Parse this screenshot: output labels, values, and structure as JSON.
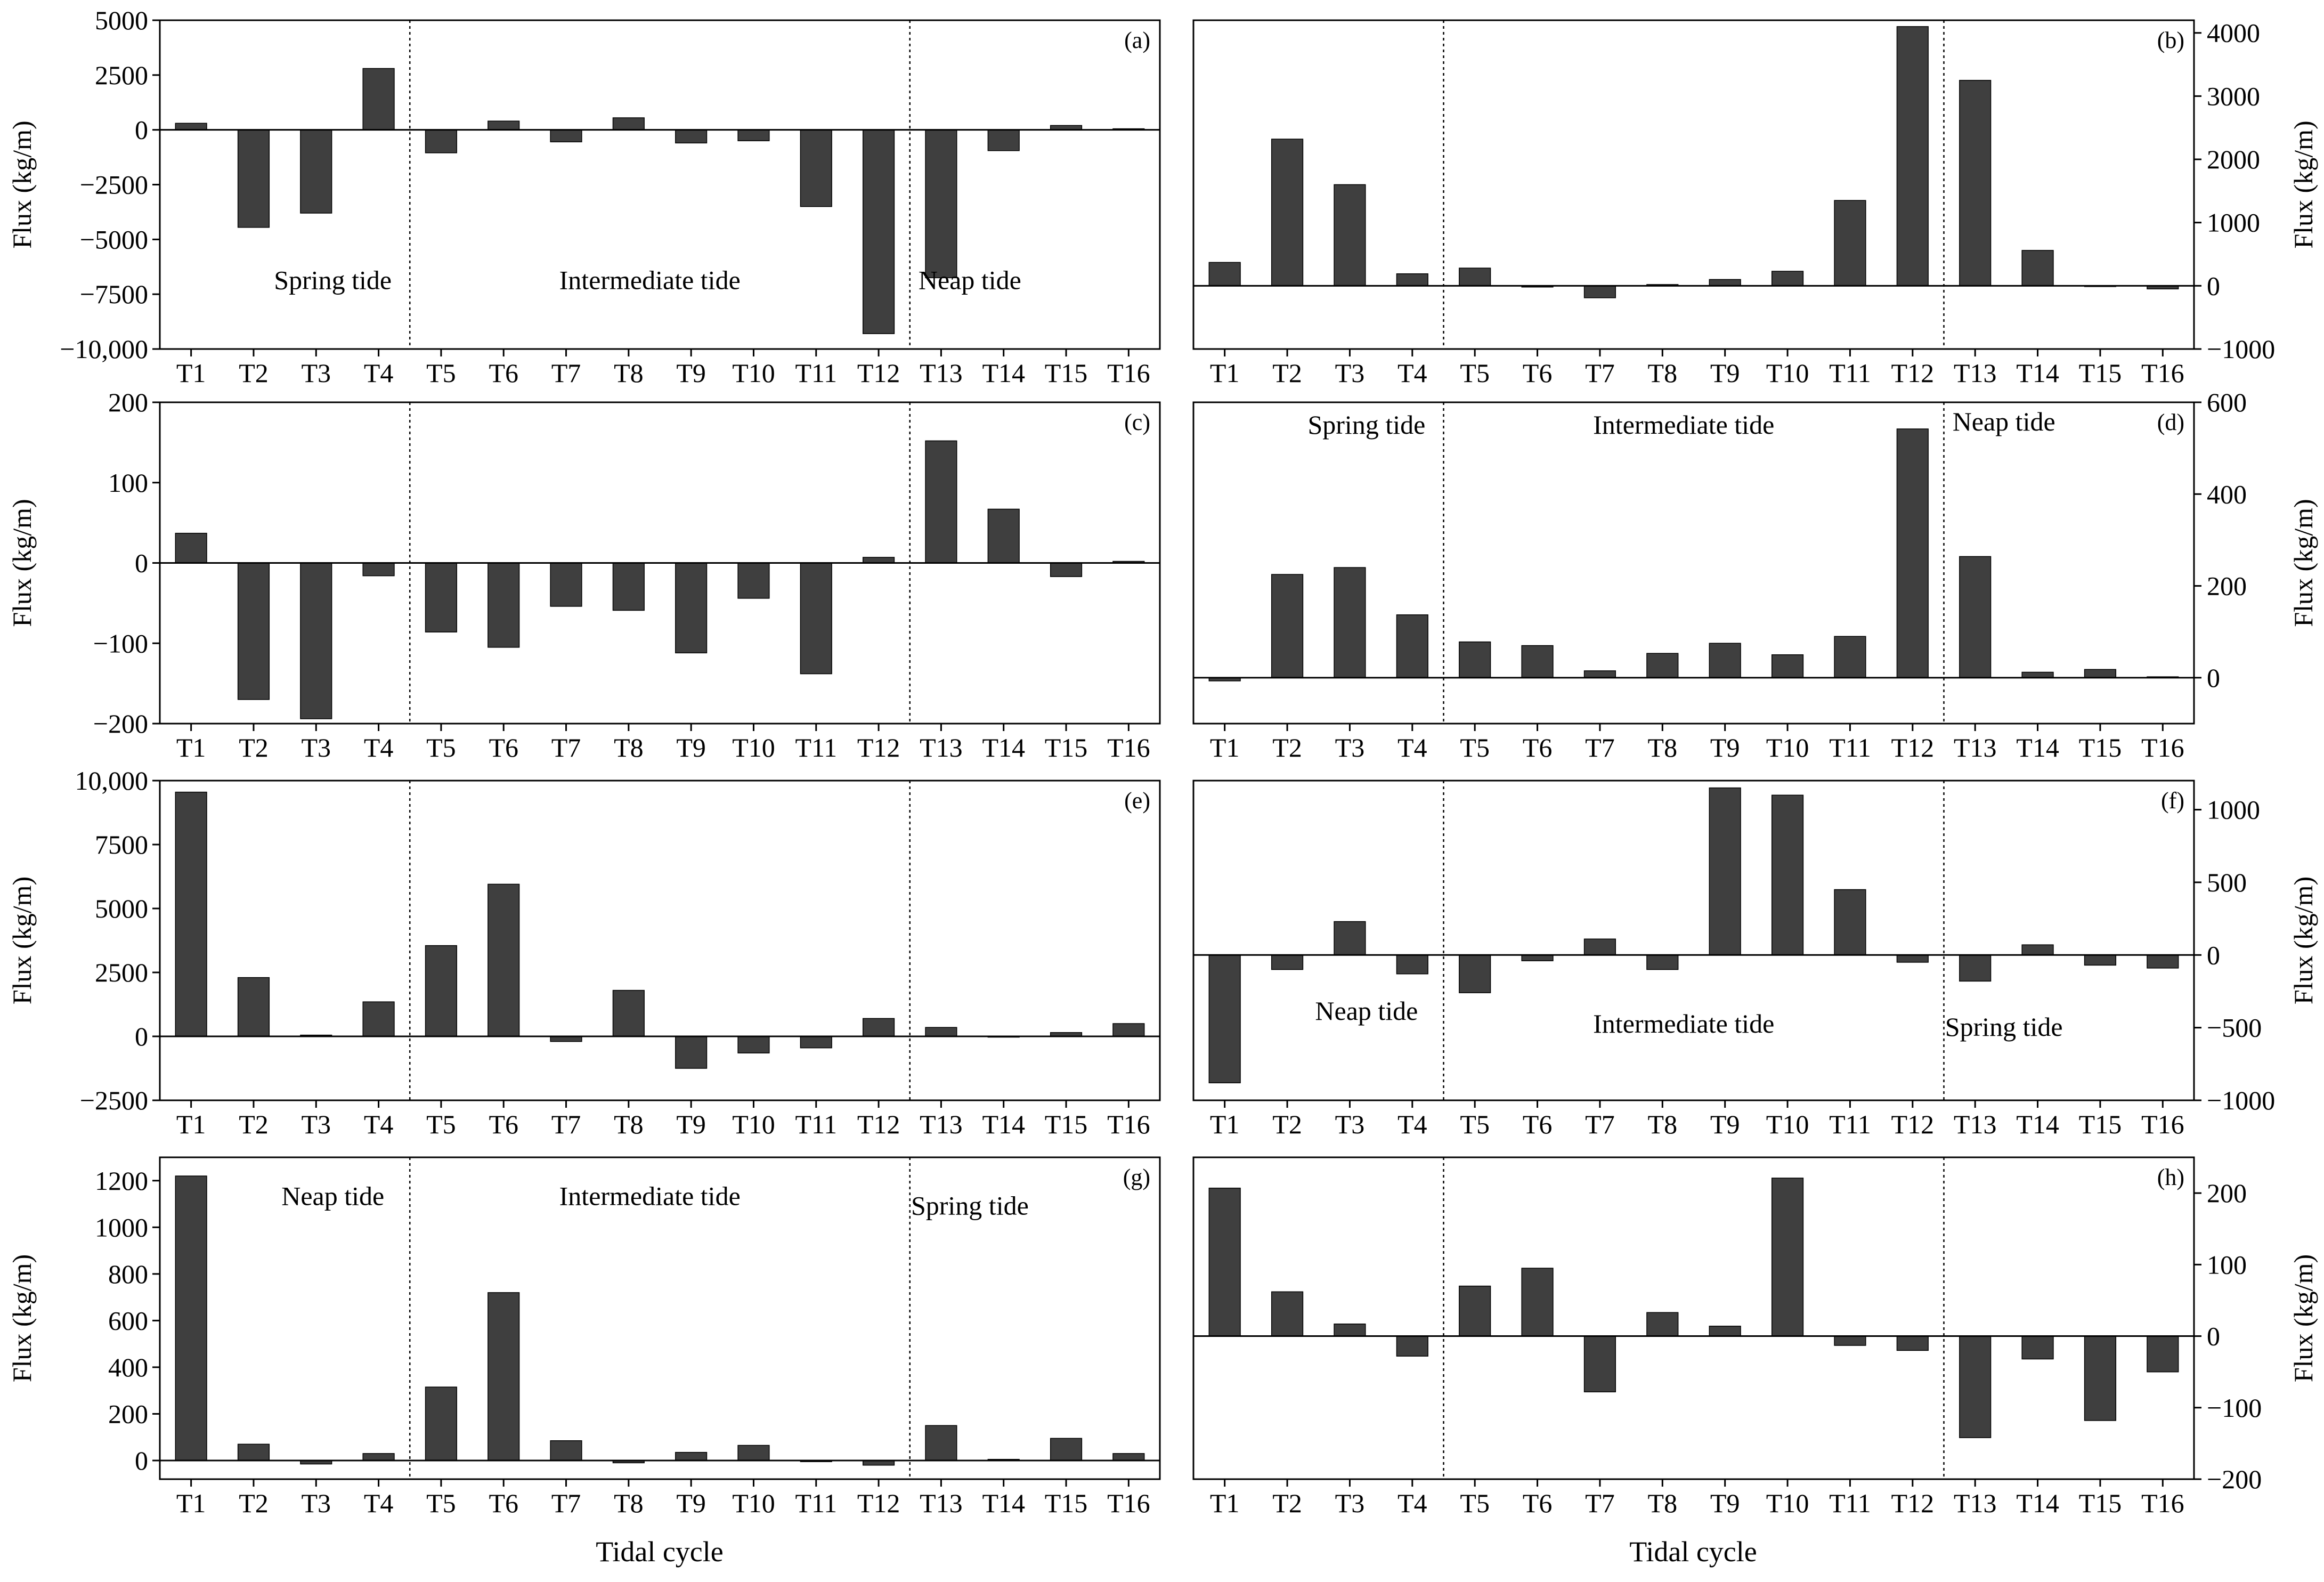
{
  "xlabel": "Tidal cycle",
  "chart_data": [
    {
      "panel": "(a)",
      "type": "bar",
      "yaxis": "left",
      "ylabel": "Flux (kg/m)",
      "ylim": [
        -10000,
        5000
      ],
      "yticks": [
        -10000,
        -7500,
        -5000,
        -2500,
        0,
        2500,
        5000
      ],
      "ytick_labels": [
        "−10,000",
        "−7500",
        "−5000",
        "−2500",
        "0",
        "2500",
        "5000"
      ],
      "categories": [
        "T1",
        "T2",
        "T3",
        "T4",
        "T5",
        "T6",
        "T7",
        "T8",
        "T9",
        "T10",
        "T11",
        "T12",
        "T13",
        "T14",
        "T15",
        "T16"
      ],
      "values": [
        300,
        -4450,
        -3800,
        2800,
        -1050,
        400,
        -550,
        550,
        -600,
        -500,
        -3500,
        -9300,
        -6750,
        -950,
        200,
        50
      ],
      "annotations": [
        "Spring tide",
        "Intermediate tide",
        "Neap tide"
      ]
    },
    {
      "panel": "(b)",
      "type": "bar",
      "yaxis": "right",
      "ylabel": "Flux (kg/m)",
      "ylim": [
        -1000,
        4200
      ],
      "yticks": [
        -1000,
        0,
        1000,
        2000,
        3000,
        4000
      ],
      "ytick_labels": [
        "−1000",
        "0",
        "1000",
        "2000",
        "3000",
        "4000"
      ],
      "categories": [
        "T1",
        "T2",
        "T3",
        "T4",
        "T5",
        "T6",
        "T7",
        "T8",
        "T9",
        "T10",
        "T11",
        "T12",
        "T13",
        "T14",
        "T15",
        "T16"
      ],
      "values": [
        370,
        2320,
        1600,
        190,
        280,
        -20,
        -190,
        20,
        100,
        230,
        1350,
        4100,
        3250,
        560,
        0,
        -50
      ],
      "annotations": []
    },
    {
      "panel": "(c)",
      "type": "bar",
      "yaxis": "left",
      "ylabel": "Flux (kg/m)",
      "ylim": [
        -200,
        200
      ],
      "yticks": [
        -200,
        -100,
        0,
        100,
        200
      ],
      "ytick_labels": [
        "−200",
        "−100",
        "0",
        "100",
        "200"
      ],
      "categories": [
        "T1",
        "T2",
        "T3",
        "T4",
        "T5",
        "T6",
        "T7",
        "T8",
        "T9",
        "T10",
        "T11",
        "T12",
        "T13",
        "T14",
        "T15",
        "T16"
      ],
      "values": [
        37,
        -170,
        -194,
        -16,
        -86,
        -105,
        -54,
        -59,
        -112,
        -44,
        -138,
        7,
        152,
        67,
        -17,
        2
      ],
      "annotations": []
    },
    {
      "panel": "(d)",
      "type": "bar",
      "yaxis": "right",
      "ylabel": "Flux (kg/m)",
      "ylim": [
        -100,
        600
      ],
      "yticks": [
        0,
        200,
        400,
        600
      ],
      "ytick_labels": [
        "0",
        "200",
        "400",
        "600"
      ],
      "categories": [
        "T1",
        "T2",
        "T3",
        "T4",
        "T5",
        "T6",
        "T7",
        "T8",
        "T9",
        "T10",
        "T11",
        "T12",
        "T13",
        "T14",
        "T15",
        "T16"
      ],
      "values": [
        -7,
        225,
        240,
        137,
        78,
        70,
        15,
        53,
        75,
        50,
        90,
        542,
        264,
        12,
        18,
        2
      ],
      "annotations": [
        "Spring tide",
        "Intermediate tide",
        "Neap tide"
      ]
    },
    {
      "panel": "(e)",
      "type": "bar",
      "yaxis": "left",
      "ylabel": "Flux (kg/m)",
      "ylim": [
        -2500,
        10000
      ],
      "yticks": [
        -2500,
        0,
        2500,
        5000,
        7500,
        10000
      ],
      "ytick_labels": [
        "−2500",
        "0",
        "2500",
        "5000",
        "7500",
        "10,000"
      ],
      "categories": [
        "T1",
        "T2",
        "T3",
        "T4",
        "T5",
        "T6",
        "T7",
        "T8",
        "T9",
        "T10",
        "T11",
        "T12",
        "T13",
        "T14",
        "T15",
        "T16"
      ],
      "values": [
        9550,
        2300,
        50,
        1350,
        3550,
        5950,
        -200,
        1800,
        -1250,
        -650,
        -450,
        700,
        350,
        0,
        150,
        500
      ],
      "annotations": []
    },
    {
      "panel": "(f)",
      "type": "bar",
      "yaxis": "right",
      "ylabel": "Flux (kg/m)",
      "ylim": [
        -1000,
        1200
      ],
      "yticks": [
        -1000,
        -500,
        0,
        500,
        1000
      ],
      "ytick_labels": [
        "−1000",
        "−500",
        "0",
        "500",
        "1000"
      ],
      "categories": [
        "T1",
        "T2",
        "T3",
        "T4",
        "T5",
        "T6",
        "T7",
        "T8",
        "T9",
        "T10",
        "T11",
        "T12",
        "T13",
        "T14",
        "T15",
        "T16"
      ],
      "values": [
        -880,
        -100,
        230,
        -130,
        -260,
        -40,
        110,
        -100,
        1150,
        1100,
        450,
        -50,
        -180,
        70,
        -70,
        -90
      ],
      "annotations": [
        "Neap tide",
        "Intermediate tide",
        "Spring tide"
      ]
    },
    {
      "panel": "(g)",
      "type": "bar",
      "yaxis": "left",
      "ylabel": "Flux (kg/m)",
      "ylim": [
        -80,
        1300
      ],
      "yticks": [
        0,
        200,
        400,
        600,
        800,
        1000,
        1200
      ],
      "ytick_labels": [
        "0",
        "200",
        "400",
        "600",
        "800",
        "1000",
        "1200"
      ],
      "categories": [
        "T1",
        "T2",
        "T3",
        "T4",
        "T5",
        "T6",
        "T7",
        "T8",
        "T9",
        "T10",
        "T11",
        "T12",
        "T13",
        "T14",
        "T15",
        "T16"
      ],
      "values": [
        1220,
        70,
        -15,
        30,
        315,
        720,
        85,
        -10,
        35,
        65,
        -5,
        -20,
        150,
        5,
        95,
        30
      ],
      "annotations": [
        "Neap tide",
        "Intermediate tide",
        "Spring tide"
      ]
    },
    {
      "panel": "(h)",
      "type": "bar",
      "yaxis": "right",
      "ylabel": "Flux (kg/m)",
      "ylim": [
        -200,
        250
      ],
      "yticks": [
        -200,
        -100,
        0,
        100,
        200
      ],
      "ytick_labels": [
        "−200",
        "−100",
        "0",
        "100",
        "200"
      ],
      "categories": [
        "T1",
        "T2",
        "T3",
        "T4",
        "T5",
        "T6",
        "T7",
        "T8",
        "T9",
        "T10",
        "T11",
        "T12",
        "T13",
        "T14",
        "T15",
        "T16"
      ],
      "values": [
        207,
        62,
        17,
        -28,
        70,
        95,
        -78,
        33,
        14,
        221,
        -13,
        -20,
        -142,
        -32,
        -118,
        -50
      ],
      "annotations": []
    }
  ]
}
